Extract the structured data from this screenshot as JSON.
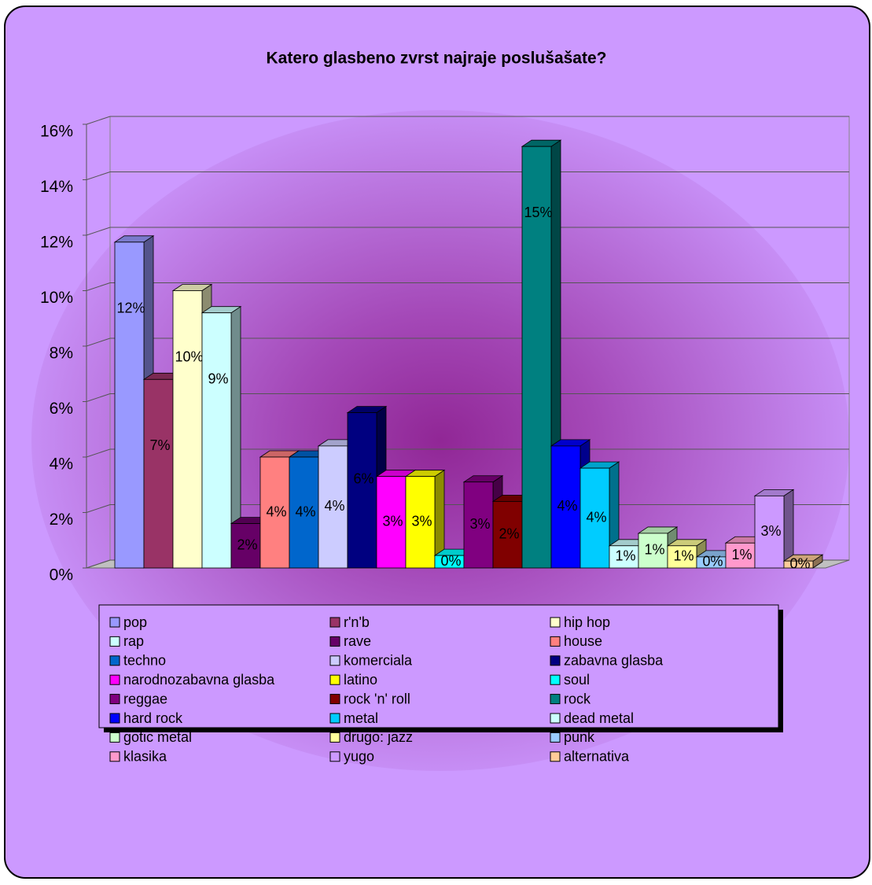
{
  "chart_data": {
    "type": "bar",
    "title": "Katero glasbeno zvrst najraje poslušašate?",
    "ylim": [
      0,
      16
    ],
    "yticks": [
      {
        "value": 0,
        "label": "0%"
      },
      {
        "value": 2,
        "label": "2%"
      },
      {
        "value": 4,
        "label": "4%"
      },
      {
        "value": 6,
        "label": "6%"
      },
      {
        "value": 8,
        "label": "8%"
      },
      {
        "value": 10,
        "label": "10%"
      },
      {
        "value": 12,
        "label": "12%"
      },
      {
        "value": 14,
        "label": "14%"
      },
      {
        "value": 16,
        "label": "16%"
      }
    ],
    "grid": true,
    "series": [
      {
        "name": "pop",
        "color": "#9999ff",
        "values": [
          11.75
        ],
        "value_labels": [
          "12%"
        ]
      },
      {
        "name": "r'n'b",
        "color": "#993366",
        "values": [
          6.8
        ],
        "value_labels": [
          "7%"
        ]
      },
      {
        "name": "hip hop",
        "color": "#ffffcc",
        "values": [
          10.0
        ],
        "value_labels": [
          "10%"
        ]
      },
      {
        "name": "rap",
        "color": "#ccffff",
        "values": [
          9.2
        ],
        "value_labels": [
          "9%"
        ]
      },
      {
        "name": "rave",
        "color": "#660066",
        "values": [
          1.6
        ],
        "value_labels": [
          "2%"
        ]
      },
      {
        "name": "house",
        "color": "#ff8080",
        "values": [
          4.0
        ],
        "value_labels": [
          "4%"
        ]
      },
      {
        "name": "techno",
        "color": "#0066cc",
        "values": [
          4.0
        ],
        "value_labels": [
          "4%"
        ]
      },
      {
        "name": "komerciala",
        "color": "#ccccff",
        "values": [
          4.4
        ],
        "value_labels": [
          "4%"
        ]
      },
      {
        "name": "zabavna glasba",
        "color": "#000080",
        "values": [
          5.6
        ],
        "value_labels": [
          "6%"
        ]
      },
      {
        "name": "narodnozabavna glasba",
        "color": "#ff00ff",
        "values": [
          3.3
        ],
        "value_labels": [
          "3%"
        ]
      },
      {
        "name": "latino",
        "color": "#ffff00",
        "values": [
          3.3
        ],
        "value_labels": [
          "3%"
        ]
      },
      {
        "name": "soul",
        "color": "#00ffff",
        "values": [
          0.45
        ],
        "value_labels": [
          "0%"
        ]
      },
      {
        "name": "reggae",
        "color": "#800080",
        "values": [
          3.1
        ],
        "value_labels": [
          "3%"
        ]
      },
      {
        "name": "rock 'n' roll",
        "color": "#800000",
        "values": [
          2.4
        ],
        "value_labels": [
          "2%"
        ]
      },
      {
        "name": "rock",
        "color": "#008080",
        "values": [
          15.2
        ],
        "value_labels": [
          "15%"
        ]
      },
      {
        "name": "hard rock",
        "color": "#0000ff",
        "values": [
          4.4
        ],
        "value_labels": [
          "4%"
        ]
      },
      {
        "name": "metal",
        "color": "#00ccff",
        "values": [
          3.6
        ],
        "value_labels": [
          "4%"
        ]
      },
      {
        "name": "dead metal",
        "color": "#ccffff",
        "values": [
          0.8
        ],
        "value_labels": [
          "1%"
        ]
      },
      {
        "name": "gotic metal",
        "color": "#ccffcc",
        "values": [
          1.25
        ],
        "value_labels": [
          "1%"
        ]
      },
      {
        "name": "drugo: jazz",
        "color": "#ffff99",
        "values": [
          0.8
        ],
        "value_labels": [
          "1%"
        ]
      },
      {
        "name": "punk",
        "color": "#99ccff",
        "values": [
          0.4
        ],
        "value_labels": [
          "0%"
        ]
      },
      {
        "name": "klasika",
        "color": "#ff99cc",
        "values": [
          0.9
        ],
        "value_labels": [
          "1%"
        ]
      },
      {
        "name": "yugo",
        "color": "#cc99ff",
        "values": [
          2.6
        ],
        "value_labels": [
          "3%"
        ]
      },
      {
        "name": "alternativa",
        "color": "#ffcc99",
        "values": [
          0.25
        ],
        "value_labels": [
          "0%"
        ]
      }
    ]
  }
}
